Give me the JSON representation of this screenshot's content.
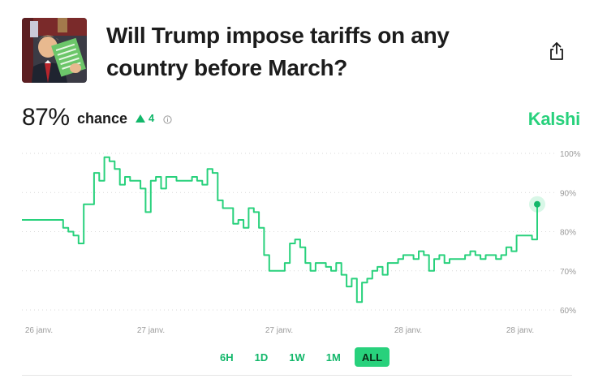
{
  "market": {
    "title": "Will Trump impose tariffs on any country before March?",
    "probability": "87%",
    "chance_label": "chance",
    "change": "4",
    "brand": "Kalshi"
  },
  "colors": {
    "accent": "#28d17c",
    "accent_dark": "#12b76a",
    "grid": "#d9d9d9",
    "axis_text": "#9a9a9a"
  },
  "icons": [
    "share-icon",
    "info-icon",
    "up-triangle-icon"
  ],
  "time_ranges": [
    "6H",
    "1D",
    "1W",
    "1M",
    "ALL"
  ],
  "selected_range": "ALL",
  "chart_data": {
    "type": "line",
    "y_ticks": [
      "100%",
      "90%",
      "80%",
      "70%",
      "60%"
    ],
    "x_ticks": [
      "26 janv.",
      "27 janv.",
      "27 janv.",
      "28 janv.",
      "28 janv."
    ],
    "ylim": [
      60,
      100
    ],
    "x": [
      0,
      7,
      8,
      9,
      10,
      11,
      12,
      13,
      14,
      15,
      16,
      17,
      18,
      19,
      20,
      21,
      22,
      23,
      24,
      25,
      26,
      27,
      28,
      29,
      30,
      31,
      32,
      33,
      34,
      35,
      36,
      37,
      38,
      39,
      40,
      41,
      42,
      43,
      44,
      45,
      46,
      47,
      48,
      49,
      50,
      51,
      52,
      53,
      54,
      55,
      56,
      57,
      58,
      59,
      60,
      61,
      62,
      63,
      64,
      65,
      66,
      67,
      68,
      69,
      70,
      71,
      72,
      73,
      74,
      75,
      76,
      77,
      78,
      79,
      80,
      81,
      82,
      83,
      84,
      85,
      86,
      87,
      88,
      89,
      90,
      91,
      92,
      93,
      94,
      95,
      96,
      97,
      98,
      99,
      100
    ],
    "values": [
      83,
      83,
      81,
      80,
      79,
      77,
      87,
      87,
      95,
      93,
      99,
      98,
      96,
      92,
      94,
      93,
      93,
      91,
      85,
      93,
      94,
      91,
      94,
      94,
      93,
      93,
      93,
      94,
      93,
      92,
      96,
      95,
      88,
      86,
      86,
      82,
      83,
      81,
      86,
      85,
      81,
      74,
      70,
      70,
      70,
      72,
      77,
      78,
      76,
      72,
      70,
      72,
      72,
      71,
      70,
      72,
      69,
      66,
      68,
      62,
      67,
      68,
      70,
      71,
      69,
      72,
      72,
      73,
      74,
      74,
      73,
      75,
      74,
      70,
      73,
      74,
      72,
      73,
      73,
      73,
      74,
      75,
      74,
      73,
      74,
      74,
      73,
      74,
      76,
      75,
      79,
      79,
      79,
      78,
      87
    ],
    "end_value": 87
  }
}
